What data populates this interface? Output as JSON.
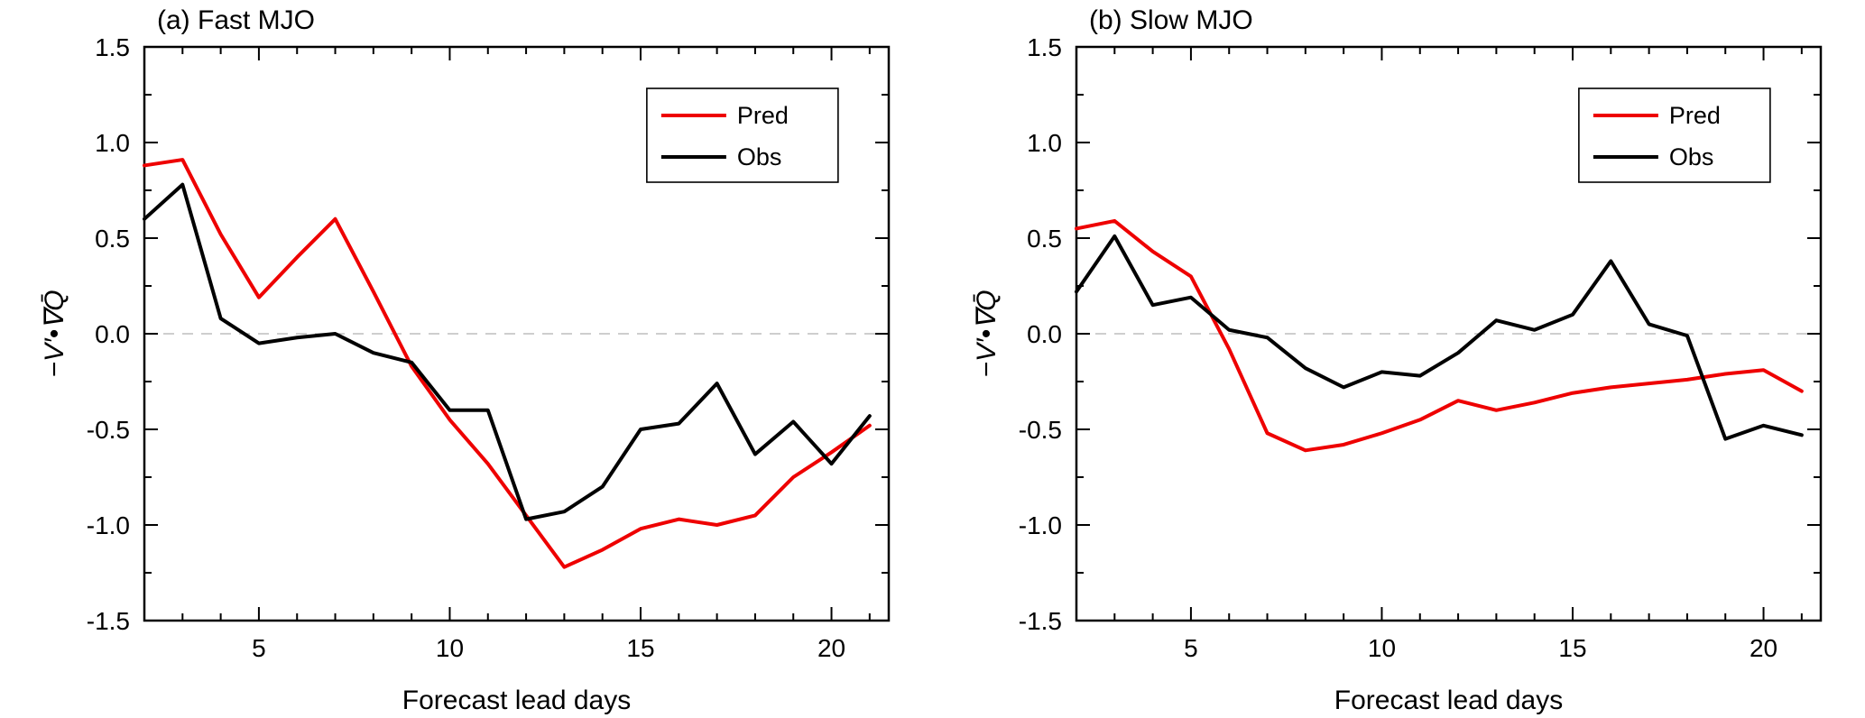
{
  "figure_title": "",
  "chart_data": [
    {
      "type": "line",
      "title": "(a) Fast MJO",
      "xlabel": "Forecast lead days",
      "ylabel": "−V′•∇Q̄",
      "xlim": [
        2,
        21.5
      ],
      "ylim": [
        -1.5,
        1.5
      ],
      "xticks": [
        5,
        10,
        15,
        20
      ],
      "yticks": [
        -1.5,
        -1.0,
        -0.5,
        0.0,
        0.5,
        1.0,
        1.5
      ],
      "ytick_labels": [
        "-1.5",
        "-1.0",
        "-0.5",
        "0.0",
        "0.5",
        "1.0",
        "1.5"
      ],
      "grid": false,
      "zero_line": true,
      "legend_position": "upper-right-inside",
      "x": [
        2,
        3,
        4,
        5,
        6,
        7,
        8,
        9,
        10,
        11,
        12,
        13,
        14,
        15,
        16,
        17,
        18,
        19,
        20,
        21
      ],
      "series": [
        {
          "name": "Pred",
          "color": "#ee0000",
          "values": [
            0.88,
            0.91,
            0.52,
            0.19,
            0.4,
            0.6,
            0.22,
            -0.17,
            -0.45,
            -0.68,
            -0.95,
            -1.22,
            -1.13,
            -1.02,
            -0.97,
            -1.0,
            -0.95,
            -0.75,
            -0.62,
            -0.48
          ]
        },
        {
          "name": "Obs",
          "color": "#000000",
          "values": [
            0.6,
            0.78,
            0.08,
            -0.05,
            -0.02,
            0.0,
            -0.1,
            -0.15,
            -0.4,
            -0.4,
            -0.97,
            -0.93,
            -0.8,
            -0.5,
            -0.47,
            -0.26,
            -0.63,
            -0.46,
            -0.68,
            -0.43
          ]
        }
      ]
    },
    {
      "type": "line",
      "title": "(b) Slow MJO",
      "xlabel": "Forecast lead days",
      "ylabel": "−V′•∇Q̄",
      "xlim": [
        2,
        21.5
      ],
      "ylim": [
        -1.5,
        1.5
      ],
      "xticks": [
        5,
        10,
        15,
        20
      ],
      "yticks": [
        -1.5,
        -1.0,
        -0.5,
        0.0,
        0.5,
        1.0,
        1.5
      ],
      "ytick_labels": [
        "-1.5",
        "-1.0",
        "-0.5",
        "0.0",
        "0.5",
        "1.0",
        "1.5"
      ],
      "grid": false,
      "zero_line": true,
      "legend_position": "upper-right-inside",
      "x": [
        2,
        3,
        4,
        5,
        6,
        7,
        8,
        9,
        10,
        11,
        12,
        13,
        14,
        15,
        16,
        17,
        18,
        19,
        20,
        21
      ],
      "series": [
        {
          "name": "Pred",
          "color": "#ee0000",
          "values": [
            0.55,
            0.59,
            0.43,
            0.3,
            -0.08,
            -0.52,
            -0.61,
            -0.58,
            -0.52,
            -0.45,
            -0.35,
            -0.4,
            -0.36,
            -0.31,
            -0.28,
            -0.26,
            -0.24,
            -0.21,
            -0.19,
            -0.3
          ]
        },
        {
          "name": "Obs",
          "color": "#000000",
          "values": [
            0.22,
            0.51,
            0.15,
            0.19,
            0.02,
            -0.02,
            -0.18,
            -0.28,
            -0.2,
            -0.22,
            -0.1,
            0.07,
            0.02,
            0.1,
            0.38,
            0.05,
            -0.01,
            -0.55,
            -0.48,
            -0.53
          ]
        }
      ]
    }
  ],
  "style": {
    "series_stroke_width": 4,
    "axis_color": "#000000",
    "zero_line_color": "#bdbdbd",
    "background": "#ffffff"
  }
}
